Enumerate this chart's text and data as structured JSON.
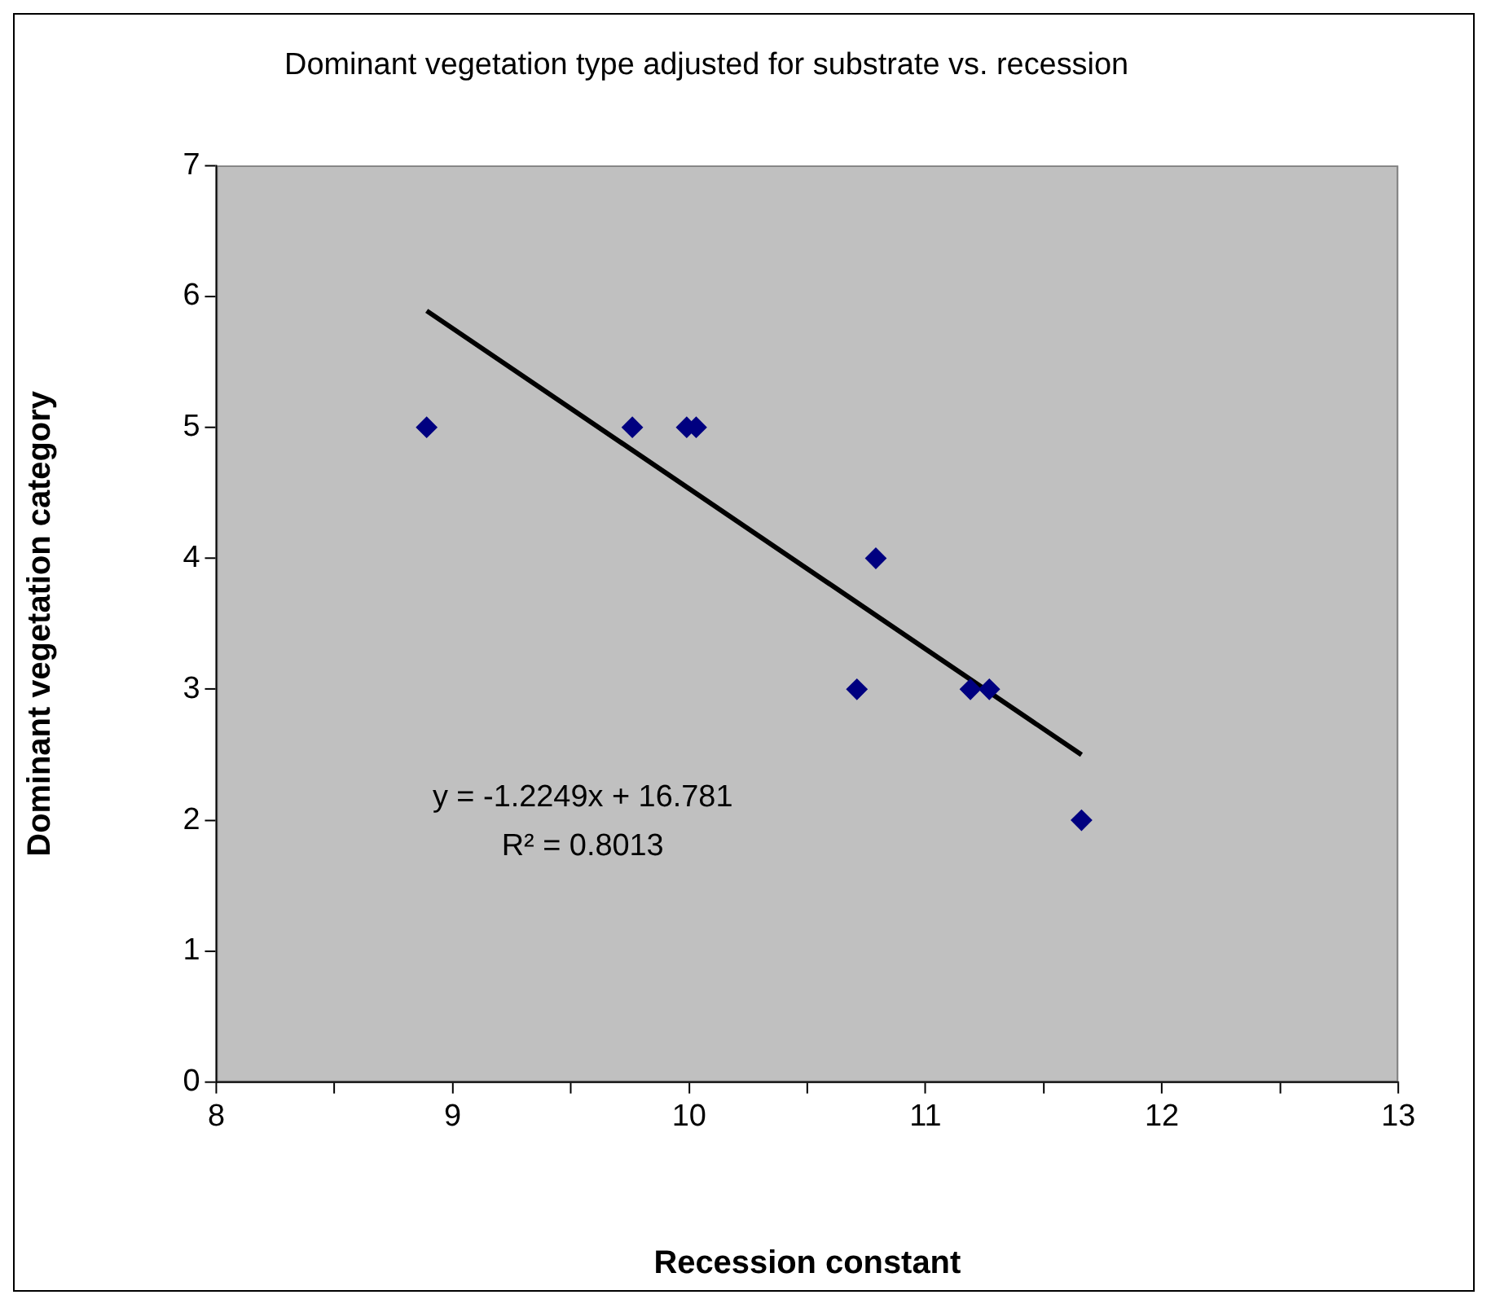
{
  "chart_data": {
    "type": "scatter",
    "title": "Dominant vegetation type adjusted for substrate vs. recession",
    "xlabel": "Recession constant",
    "ylabel": "Dominant vegetation category",
    "series": [
      {
        "type": "scatter",
        "color": "#000080",
        "marker": "diamond",
        "x": [
          8.89,
          9.76,
          9.99,
          10.03,
          10.79,
          10.71,
          11.19,
          11.27,
          11.66
        ],
        "values": [
          5,
          5,
          5,
          5,
          4,
          3,
          3,
          3,
          2
        ]
      },
      {
        "type": "line",
        "color": "#000000",
        "marker": "none",
        "line_style": "solid",
        "x": [
          8.89,
          11.66
        ],
        "values": [
          5.89,
          2.5
        ]
      }
    ],
    "xlim": [
      8,
      13
    ],
    "xticks": [
      8,
      {
        "value": 8.5,
        "label": null
      },
      9,
      {
        "value": 9.5,
        "label": null
      },
      10,
      {
        "value": 10.5,
        "label": null
      },
      11,
      {
        "value": 11.5,
        "label": null
      },
      12,
      {
        "value": 12.5,
        "label": null
      },
      13
    ],
    "ylim": [
      0,
      7
    ],
    "yticks": [
      0,
      1,
      2,
      3,
      4,
      5,
      6,
      7
    ],
    "grid": false,
    "legend": false,
    "annotations": [
      "y = -1.2249x + 16.781",
      "R² = 0.8013"
    ]
  }
}
